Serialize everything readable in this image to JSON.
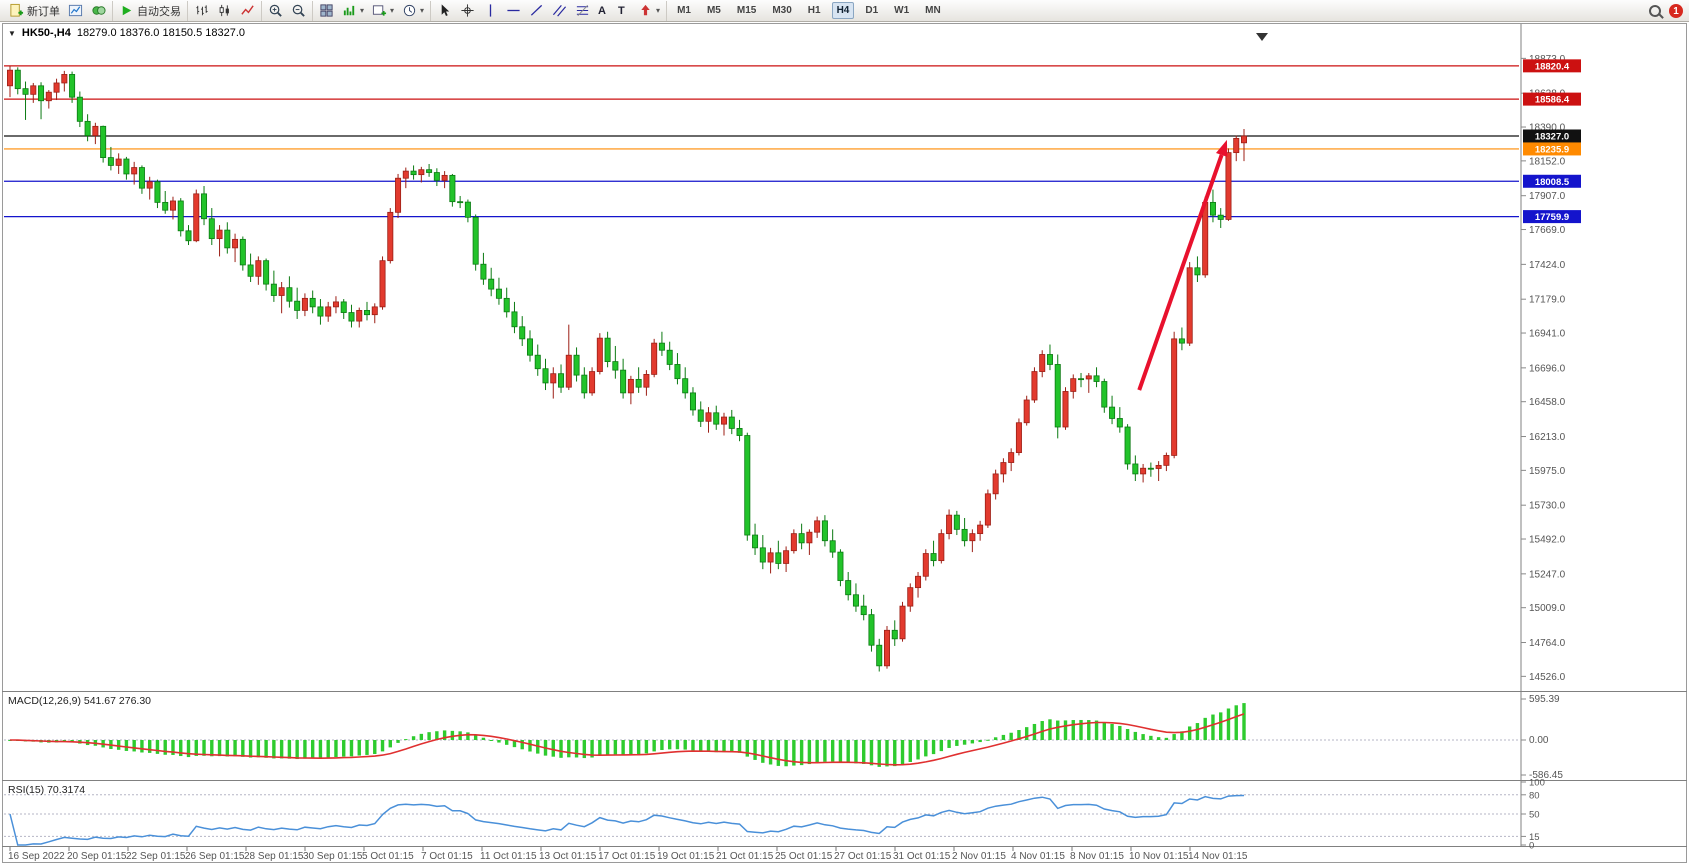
{
  "toolbar": {
    "new_order_label": "新订单",
    "auto_trading_label": "自动交易",
    "timeframes": [
      "M1",
      "M5",
      "M15",
      "M30",
      "H1",
      "H4",
      "D1",
      "W1",
      "MN"
    ],
    "active_timeframe": "H4",
    "notification_badge": "1",
    "text_tool_glyph": "A",
    "label_tool_glyph": "T",
    "caret_glyph": "▾"
  },
  "window": {
    "collapse_glyph": "▼",
    "symbol_period": "HK50-,H4",
    "ohlc": "18279.0 18376.0 18150.5 18327.0"
  },
  "indicators": {
    "macd_label": "MACD(12,26,9) 541.67 276.30",
    "rsi_label": "RSI(15) 70.3174"
  },
  "chart_data": {
    "type": "candlestick",
    "symbol": "HK50-",
    "period": "H4",
    "ohlc_current": {
      "open": 18279.0,
      "high": 18376.0,
      "low": 18150.5,
      "close": 18327.0
    },
    "axis_range": {
      "price_min": 14430,
      "price_max": 18960
    },
    "price_axis_labels": [
      18873.0,
      18628.0,
      18390.0,
      18152.0,
      17907.0,
      17669.0,
      17424.0,
      17179.0,
      16941.0,
      16696.0,
      16458.0,
      16213.0,
      15975.0,
      15730.0,
      15492.0,
      15247.0,
      15009.0,
      14764.0,
      14526.0
    ],
    "x_axis_labels": [
      "16 Sep 2022",
      "20 Sep 01:15",
      "22 Sep 01:15",
      "26 Sep 01:15",
      "28 Sep 01:15",
      "30 Sep 01:15",
      "5 Oct 01:15",
      "7 Oct 01:15",
      "11 Oct 01:15",
      "13 Oct 01:15",
      "17 Oct 01:15",
      "19 Oct 01:15",
      "21 Oct 01:15",
      "25 Oct 01:15",
      "27 Oct 01:15",
      "31 Oct 01:15",
      "2 Nov 01:15",
      "4 Nov 01:15",
      "8 Nov 01:15",
      "10 Nov 01:15",
      "14 Nov 01:15"
    ],
    "levels": [
      {
        "price": 18820.4,
        "label": "18820.4",
        "color": "#cc1111",
        "kind": "resistance"
      },
      {
        "price": 18586.4,
        "label": "18586.4",
        "color": "#cc1111",
        "kind": "resistance"
      },
      {
        "price": 18327.0,
        "label": "18327.0",
        "color": "#111111",
        "kind": "current-price"
      },
      {
        "price": 18235.9,
        "label": "18235.9",
        "color": "#ff8a00",
        "kind": "level"
      },
      {
        "price": 18008.5,
        "label": "18008.5",
        "color": "#1414cc",
        "kind": "support"
      },
      {
        "price": 17759.9,
        "label": "17759.9",
        "color": "#1414cc",
        "kind": "support"
      }
    ],
    "macd": {
      "name": "MACD",
      "params": [
        12,
        26,
        9
      ],
      "value": 541.67,
      "signal": 276.3,
      "scale_labels": [
        "595.39",
        "0.00",
        "-586.45"
      ]
    },
    "rsi": {
      "name": "RSI",
      "period": 15,
      "value": 70.3174,
      "scale_labels": [
        "100",
        "80",
        "50",
        "15",
        "0"
      ],
      "level_lines": [
        80,
        50,
        15
      ]
    },
    "arrow": {
      "bar_from": 145.5,
      "price_from": 16540,
      "bar_to": 156.8,
      "price_to": 18300,
      "color": "#e8112d"
    },
    "colors": {
      "up": "#e23a2e",
      "up_border": "#9c1f16",
      "down": "#22c32a",
      "down_border": "#0b7a12",
      "macd_histogram": "#2ecb2e",
      "macd_signal": "#e03030",
      "rsi_line": "#4a90d9",
      "axis_text": "#555555"
    },
    "candles": [
      [
        18680,
        18820,
        18600,
        18790
      ],
      [
        18790,
        18810,
        18620,
        18660
      ],
      [
        18660,
        18710,
        18440,
        18620
      ],
      [
        18620,
        18700,
        18560,
        18680
      ],
      [
        18680,
        18705,
        18445,
        18575
      ],
      [
        18575,
        18650,
        18520,
        18635
      ],
      [
        18635,
        18730,
        18580,
        18700
      ],
      [
        18700,
        18785,
        18640,
        18760
      ],
      [
        18760,
        18780,
        18560,
        18600
      ],
      [
        18600,
        18640,
        18390,
        18430
      ],
      [
        18430,
        18480,
        18290,
        18330
      ],
      [
        18330,
        18420,
        18270,
        18395
      ],
      [
        18395,
        18400,
        18140,
        18175
      ],
      [
        18175,
        18250,
        18085,
        18120
      ],
      [
        18120,
        18205,
        18060,
        18165
      ],
      [
        18165,
        18180,
        18020,
        18060
      ],
      [
        18060,
        18145,
        17985,
        18105
      ],
      [
        18105,
        18120,
        17920,
        17960
      ],
      [
        17960,
        18040,
        17880,
        18005
      ],
      [
        18005,
        18020,
        17820,
        17860
      ],
      [
        17860,
        17940,
        17780,
        17805
      ],
      [
        17805,
        17900,
        17740,
        17870
      ],
      [
        17870,
        17890,
        17620,
        17660
      ],
      [
        17660,
        17700,
        17560,
        17590
      ],
      [
        17590,
        17950,
        17580,
        17920
      ],
      [
        17920,
        17975,
        17700,
        17745
      ],
      [
        17745,
        17820,
        17560,
        17605
      ],
      [
        17605,
        17700,
        17480,
        17665
      ],
      [
        17665,
        17720,
        17500,
        17540
      ],
      [
        17540,
        17640,
        17440,
        17600
      ],
      [
        17600,
        17620,
        17380,
        17420
      ],
      [
        17420,
        17500,
        17300,
        17340
      ],
      [
        17340,
        17480,
        17280,
        17450
      ],
      [
        17450,
        17465,
        17240,
        17285
      ],
      [
        17285,
        17380,
        17160,
        17205
      ],
      [
        17205,
        17300,
        17080,
        17260
      ],
      [
        17260,
        17340,
        17120,
        17165
      ],
      [
        17165,
        17260,
        17040,
        17100
      ],
      [
        17100,
        17220,
        17060,
        17185
      ],
      [
        17185,
        17240,
        17080,
        17125
      ],
      [
        17125,
        17180,
        17000,
        17060
      ],
      [
        17060,
        17160,
        17020,
        17125
      ],
      [
        17125,
        17200,
        17080,
        17160
      ],
      [
        17160,
        17180,
        17040,
        17085
      ],
      [
        17085,
        17140,
        16980,
        17025
      ],
      [
        17025,
        17120,
        16980,
        17100
      ],
      [
        17100,
        17160,
        17030,
        17070
      ],
      [
        17070,
        17150,
        17010,
        17125
      ],
      [
        17125,
        17480,
        17105,
        17450
      ],
      [
        17450,
        17820,
        17430,
        17790
      ],
      [
        17790,
        18060,
        17750,
        18030
      ],
      [
        18030,
        18105,
        17960,
        18080
      ],
      [
        18080,
        18120,
        18020,
        18055
      ],
      [
        18055,
        18110,
        18000,
        18090
      ],
      [
        18090,
        18130,
        18040,
        18070
      ],
      [
        18070,
        18100,
        17975,
        18015
      ],
      [
        18015,
        18080,
        17960,
        18050
      ],
      [
        18050,
        18060,
        17830,
        17865
      ],
      [
        17865,
        17905,
        17820,
        17862
      ],
      [
        17862,
        17880,
        17720,
        17755
      ],
      [
        17755,
        17775,
        17380,
        17425
      ],
      [
        17425,
        17505,
        17280,
        17320
      ],
      [
        17320,
        17400,
        17200,
        17250
      ],
      [
        17250,
        17330,
        17140,
        17185
      ],
      [
        17185,
        17260,
        17050,
        17090
      ],
      [
        17090,
        17160,
        16940,
        16985
      ],
      [
        16985,
        17060,
        16850,
        16900
      ],
      [
        16900,
        16960,
        16740,
        16785
      ],
      [
        16785,
        16860,
        16640,
        16690
      ],
      [
        16690,
        16760,
        16540,
        16590
      ],
      [
        16590,
        16700,
        16480,
        16655
      ],
      [
        16655,
        16720,
        16520,
        16560
      ],
      [
        16560,
        17000,
        16540,
        16785
      ],
      [
        16785,
        16840,
        16600,
        16645
      ],
      [
        16645,
        16700,
        16480,
        16520
      ],
      [
        16520,
        16700,
        16500,
        16670
      ],
      [
        16670,
        16940,
        16650,
        16905
      ],
      [
        16905,
        16950,
        16700,
        16740
      ],
      [
        16740,
        16850,
        16620,
        16680
      ],
      [
        16680,
        16760,
        16480,
        16520
      ],
      [
        16520,
        16640,
        16440,
        16615
      ],
      [
        16615,
        16700,
        16520,
        16560
      ],
      [
        16560,
        16680,
        16500,
        16650
      ],
      [
        16650,
        16900,
        16630,
        16870
      ],
      [
        16870,
        16950,
        16780,
        16820
      ],
      [
        16820,
        16880,
        16680,
        16720
      ],
      [
        16720,
        16800,
        16580,
        16620
      ],
      [
        16620,
        16700,
        16480,
        16520
      ],
      [
        16520,
        16560,
        16360,
        16400
      ],
      [
        16400,
        16460,
        16280,
        16320
      ],
      [
        16320,
        16420,
        16240,
        16380
      ],
      [
        16380,
        16430,
        16260,
        16300
      ],
      [
        16300,
        16380,
        16220,
        16350
      ],
      [
        16350,
        16400,
        16230,
        16270
      ],
      [
        16270,
        16330,
        16180,
        16220
      ],
      [
        16220,
        16240,
        15480,
        15520
      ],
      [
        15520,
        15600,
        15380,
        15430
      ],
      [
        15430,
        15520,
        15280,
        15330
      ],
      [
        15330,
        15430,
        15250,
        15395
      ],
      [
        15395,
        15480,
        15280,
        15320
      ],
      [
        15320,
        15440,
        15260,
        15410
      ],
      [
        15410,
        15560,
        15390,
        15530
      ],
      [
        15530,
        15600,
        15420,
        15465
      ],
      [
        15465,
        15560,
        15380,
        15540
      ],
      [
        15540,
        15650,
        15500,
        15620
      ],
      [
        15620,
        15660,
        15440,
        15480
      ],
      [
        15480,
        15560,
        15360,
        15400
      ],
      [
        15400,
        15420,
        15160,
        15200
      ],
      [
        15200,
        15260,
        15060,
        15100
      ],
      [
        15100,
        15180,
        14980,
        15020
      ],
      [
        15020,
        15100,
        14920,
        14960
      ],
      [
        14960,
        15000,
        14700,
        14745
      ],
      [
        14745,
        14790,
        14560,
        14600
      ],
      [
        14600,
        14880,
        14580,
        14850
      ],
      [
        14850,
        14920,
        14740,
        14790
      ],
      [
        14790,
        15050,
        14770,
        15020
      ],
      [
        15020,
        15180,
        14980,
        15150
      ],
      [
        15150,
        15260,
        15080,
        15230
      ],
      [
        15230,
        15420,
        15200,
        15390
      ],
      [
        15390,
        15480,
        15300,
        15340
      ],
      [
        15340,
        15560,
        15320,
        15530
      ],
      [
        15530,
        15700,
        15490,
        15660
      ],
      [
        15660,
        15690,
        15520,
        15560
      ],
      [
        15560,
        15640,
        15440,
        15480
      ],
      [
        15480,
        15560,
        15400,
        15530
      ],
      [
        15530,
        15620,
        15480,
        15590
      ],
      [
        15590,
        15840,
        15570,
        15810
      ],
      [
        15810,
        15980,
        15770,
        15950
      ],
      [
        15950,
        16060,
        15890,
        16030
      ],
      [
        16030,
        16130,
        15970,
        16100
      ],
      [
        16100,
        16340,
        16080,
        16310
      ],
      [
        16310,
        16500,
        16290,
        16470
      ],
      [
        16470,
        16700,
        16450,
        16670
      ],
      [
        16670,
        16820,
        16630,
        16790
      ],
      [
        16790,
        16860,
        16680,
        16720
      ],
      [
        16720,
        16790,
        16200,
        16280
      ],
      [
        16280,
        16560,
        16260,
        16530
      ],
      [
        16530,
        16650,
        16480,
        16620
      ],
      [
        16620,
        16660,
        16560,
        16618
      ],
      [
        16618,
        16660,
        16520,
        16640
      ],
      [
        16640,
        16700,
        16560,
        16600
      ],
      [
        16600,
        16620,
        16380,
        16420
      ],
      [
        16420,
        16500,
        16300,
        16340
      ],
      [
        16340,
        16420,
        16240,
        16280
      ],
      [
        16280,
        16300,
        15980,
        16020
      ],
      [
        16020,
        16080,
        15900,
        15950
      ],
      [
        15950,
        16020,
        15890,
        15990
      ],
      [
        15990,
        16030,
        15930,
        15988
      ],
      [
        15988,
        16040,
        15900,
        16010
      ],
      [
        16010,
        16100,
        15970,
        16080
      ],
      [
        16080,
        16950,
        16060,
        16900
      ],
      [
        16900,
        16980,
        16820,
        16870
      ],
      [
        16870,
        17440,
        16850,
        17400
      ],
      [
        17400,
        17480,
        17300,
        17350
      ],
      [
        17350,
        17900,
        17330,
        17860
      ],
      [
        17860,
        17950,
        17720,
        17770
      ],
      [
        17770,
        17820,
        17680,
        17740
      ],
      [
        17740,
        18240,
        17730,
        18210
      ],
      [
        18210,
        18330,
        18150,
        18310
      ],
      [
        18279,
        18376,
        18150.5,
        18327
      ]
    ]
  }
}
